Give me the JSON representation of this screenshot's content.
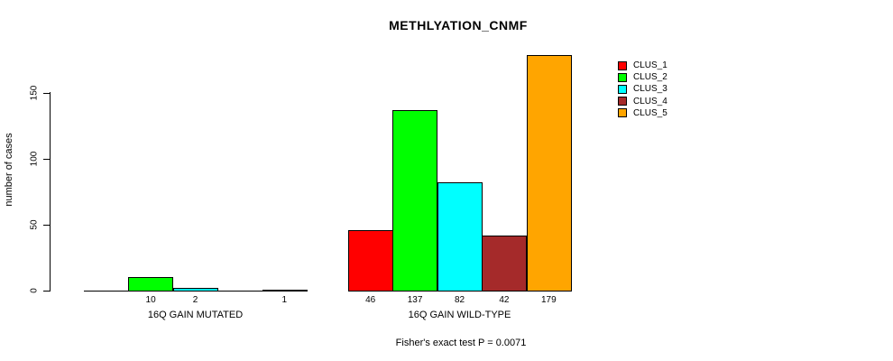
{
  "title": "METHLYATION_CNMF",
  "annotation": "Fisher's exact test P = 0.0071",
  "y_axis": {
    "label": "number of cases",
    "ticks": [
      0,
      50,
      100,
      150
    ]
  },
  "groups": [
    {
      "label": "16Q GAIN MUTATED"
    },
    {
      "label": "16Q GAIN WILD-TYPE"
    }
  ],
  "legend": [
    {
      "label": "CLUS_1",
      "color": "#ff0000"
    },
    {
      "label": "CLUS_2",
      "color": "#00ff00"
    },
    {
      "label": "CLUS_3",
      "color": "#00ffff"
    },
    {
      "label": "CLUS_4",
      "color": "#a52a2a"
    },
    {
      "label": "CLUS_5",
      "color": "#ffa500"
    }
  ],
  "chart_data": {
    "type": "bar",
    "title": "METHLYATION_CNMF",
    "xlabel": "",
    "ylabel": "number of cases",
    "ylim": [
      0,
      180
    ],
    "yticks": [
      0,
      50,
      100,
      150
    ],
    "grid": false,
    "legend_position": "right",
    "categories": [
      "16Q GAIN MUTATED",
      "16Q GAIN WILD-TYPE"
    ],
    "series": [
      {
        "name": "CLUS_1",
        "color": "#ff0000",
        "values": [
          0,
          46
        ]
      },
      {
        "name": "CLUS_2",
        "color": "#00ff00",
        "values": [
          10,
          137
        ]
      },
      {
        "name": "CLUS_3",
        "color": "#00ffff",
        "values": [
          2,
          82
        ]
      },
      {
        "name": "CLUS_4",
        "color": "#a52a2a",
        "values": [
          0,
          42
        ]
      },
      {
        "name": "CLUS_5",
        "color": "#ffa500",
        "values": [
          1,
          179
        ]
      }
    ],
    "bar_value_labels": {
      "16Q GAIN MUTATED": [
        "",
        "10",
        "2",
        "",
        "1"
      ],
      "16Q GAIN WILD-TYPE": [
        "46",
        "137",
        "82",
        "42",
        "179"
      ]
    },
    "annotation": "Fisher's exact test P = 0.0071"
  }
}
